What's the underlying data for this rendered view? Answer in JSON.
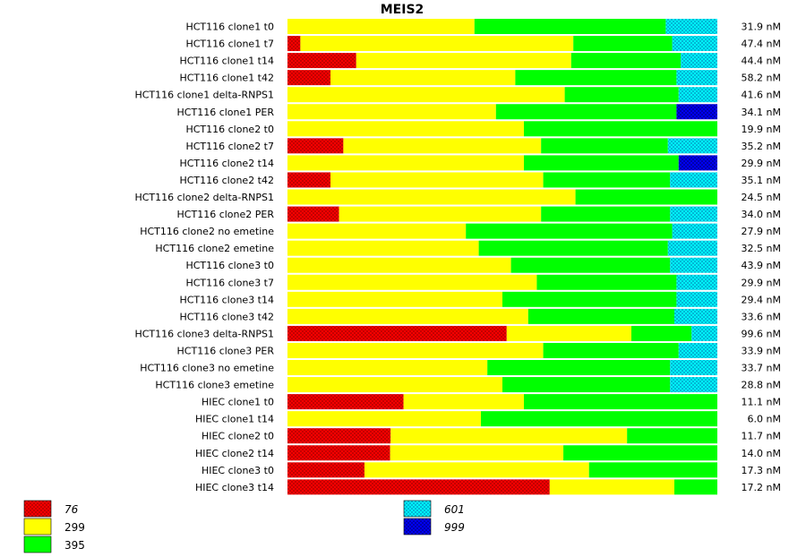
{
  "chart_data": {
    "type": "bar",
    "stacked": "100%",
    "orientation": "horizontal",
    "title": "MEIS2",
    "xlabel": "",
    "ylabel": "",
    "categories": [
      "HCT116 clone1 t0",
      "HCT116 clone1 t7",
      "HCT116 clone1 t14",
      "HCT116 clone1 t42",
      "HCT116 clone1 delta-RNPS1",
      "HCT116 clone1 PER",
      "HCT116 clone2 t0",
      "HCT116 clone2 t7",
      "HCT116 clone2 t14",
      "HCT116 clone2 t42",
      "HCT116 clone2 delta-RNPS1",
      "HCT116 clone2 PER",
      "HCT116 clone2 no emetine",
      "HCT116 clone2 emetine",
      "HCT116 clone3 t0",
      "HCT116 clone3 t7",
      "HCT116 clone3 t14",
      "HCT116 clone3 t42",
      "HCT116 clone3 delta-RNPS1",
      "HCT116 clone3 PER",
      "HCT116 clone3 no emetine",
      "HCT116 clone3 emetine",
      "HIEC clone1 t0",
      "HIEC clone1 t14",
      "HIEC clone2 t0",
      "HIEC clone2 t14",
      "HIEC clone3 t0",
      "HIEC clone3 t14"
    ],
    "totals": [
      "31.9 nM",
      "47.4 nM",
      "44.4 nM",
      "58.2 nM",
      "41.6 nM",
      "34.1 nM",
      "19.9 nM",
      "35.2 nM",
      "29.9 nM",
      "35.1 nM",
      "24.5 nM",
      "34.0 nM",
      "27.9 nM",
      "32.5 nM",
      "43.9 nM",
      "29.9 nM",
      "29.4 nM",
      "33.6 nM",
      "99.6 nM",
      "33.9 nM",
      "33.7 nM",
      "28.8 nM",
      "11.1 nM",
      "6.0 nM",
      "11.7 nM",
      "14.0 nM",
      "17.3 nM",
      "17.2 nM"
    ],
    "series": [
      {
        "name": "76",
        "color": "#ff0000",
        "pattern": "crosshatch",
        "values": [
          0,
          3,
          16,
          10,
          0,
          0,
          0,
          13,
          0,
          10,
          0,
          12,
          0,
          0,
          0,
          0,
          0,
          0,
          51,
          0,
          0,
          0,
          27,
          0,
          24,
          24,
          18,
          61
        ]
      },
      {
        "name": "299",
        "color": "#ffff00",
        "pattern": "solid",
        "values": [
          43.5,
          63.5,
          50,
          43,
          64.5,
          48.5,
          55,
          46,
          55,
          49.5,
          67,
          47,
          41.5,
          44.5,
          52,
          58,
          50,
          56,
          29,
          59.5,
          46.5,
          50,
          28,
          45,
          55,
          40.5,
          52.5,
          29
        ]
      },
      {
        "name": "395",
        "color": "#00ff00",
        "pattern": "solid",
        "values": [
          44.5,
          23,
          25.5,
          37.5,
          26.5,
          42,
          45,
          29.5,
          36,
          29.5,
          33,
          30,
          48,
          44,
          37,
          32.5,
          40.5,
          34,
          14,
          31.5,
          42.5,
          39,
          45,
          55,
          21,
          36,
          30,
          10
        ]
      },
      {
        "name": "601",
        "color": "#00ffff",
        "pattern": "crosshatch",
        "values": [
          12,
          10.5,
          8.5,
          9.5,
          9,
          0,
          0,
          11.5,
          0,
          11,
          0,
          11,
          10.5,
          11.5,
          11,
          9.5,
          9.5,
          10,
          6,
          9,
          11,
          11,
          0,
          0,
          0,
          0,
          0,
          0
        ]
      },
      {
        "name": "999",
        "color": "#0000ff",
        "pattern": "crosshatch",
        "values": [
          0,
          0,
          0,
          0,
          0,
          9.5,
          0,
          0,
          9,
          0,
          0,
          0,
          0,
          0,
          0,
          0,
          0,
          0,
          0,
          0,
          0,
          0,
          0,
          0,
          0,
          0,
          0,
          0
        ]
      }
    ],
    "xlim": [
      0,
      100
    ],
    "grid": false,
    "legend": [
      {
        "label": "76",
        "series": 0,
        "column": "left"
      },
      {
        "label": "299",
        "series": 1,
        "column": "left"
      },
      {
        "label": "395",
        "series": 2,
        "column": "left"
      },
      {
        "label": "601",
        "series": 3,
        "column": "right"
      },
      {
        "label": "999",
        "series": 4,
        "column": "right"
      }
    ],
    "legend_position": "bottom"
  }
}
